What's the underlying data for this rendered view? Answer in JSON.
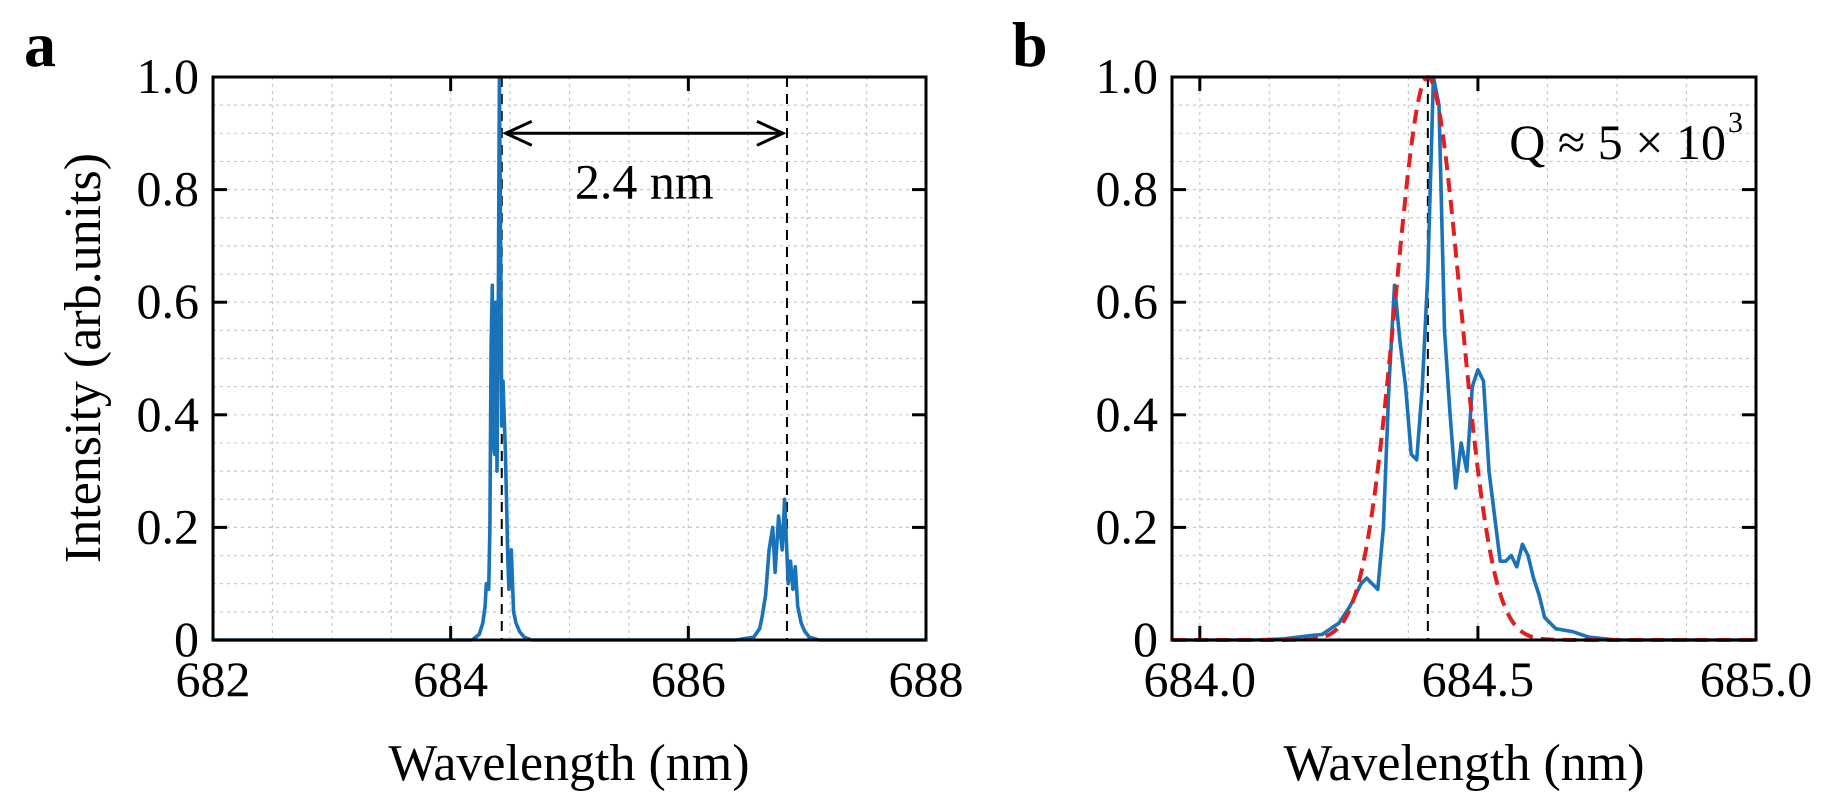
{
  "chart_data": [
    {
      "panel": "a",
      "type": "line",
      "title": "",
      "xlabel": "Wavelength (nm)",
      "ylabel": "Intensity (arb.units)",
      "xlim": [
        682,
        688
      ],
      "ylim": [
        0,
        1.0
      ],
      "xticks": [
        "682",
        "684",
        "686",
        "688"
      ],
      "yticks": [
        "0",
        "0.2",
        "0.4",
        "0.6",
        "0.8",
        "1.0"
      ],
      "grid": true,
      "series": [
        {
          "color": "#1a72b8",
          "x": [
            682.0,
            684.0,
            684.18,
            684.24,
            684.27,
            684.29,
            684.3,
            684.32,
            684.33,
            684.34,
            684.35,
            684.36,
            684.37,
            684.38,
            684.39,
            684.4,
            684.41,
            684.42,
            684.43,
            684.44,
            684.45,
            684.46,
            684.47,
            684.48,
            684.49,
            684.5,
            684.51,
            684.52,
            684.53,
            684.55,
            684.58,
            684.62,
            684.68,
            684.8,
            686.4,
            686.55,
            686.6,
            686.62,
            686.65,
            686.68,
            686.71,
            686.73,
            686.76,
            686.79,
            686.81,
            686.84,
            686.86,
            686.88,
            686.9,
            686.92,
            686.95,
            686.98,
            687.02,
            687.1,
            688.0
          ],
          "y": [
            0.0,
            0.0,
            0.0,
            0.01,
            0.03,
            0.06,
            0.1,
            0.09,
            0.2,
            0.52,
            0.63,
            0.35,
            0.33,
            0.6,
            0.3,
            0.55,
            1.0,
            0.7,
            0.38,
            0.46,
            0.4,
            0.34,
            0.25,
            0.15,
            0.09,
            0.13,
            0.16,
            0.1,
            0.05,
            0.03,
            0.015,
            0.005,
            0.0,
            0.0,
            0.0,
            0.005,
            0.02,
            0.04,
            0.08,
            0.16,
            0.2,
            0.12,
            0.22,
            0.16,
            0.25,
            0.1,
            0.14,
            0.09,
            0.13,
            0.06,
            0.03,
            0.015,
            0.005,
            0.0,
            0.0
          ]
        }
      ],
      "reference_lines_x": [
        684.43,
        686.83
      ],
      "annotation": {
        "text": "2.4 nm",
        "arrow_from_x": 684.43,
        "arrow_to_x": 686.83,
        "arrow_y": 0.9
      }
    },
    {
      "panel": "b",
      "type": "line",
      "title": "",
      "xlabel": "Wavelength (nm)",
      "ylabel": "",
      "xlim": [
        683.95,
        685.0
      ],
      "ylim": [
        0,
        1.0
      ],
      "xticks": [
        "684.0",
        "684.5",
        "685.0"
      ],
      "xtick_values": [
        684.0,
        684.5,
        685.0
      ],
      "yticks": [
        "0",
        "0.2",
        "0.4",
        "0.6",
        "0.8",
        "1.0"
      ],
      "grid": true,
      "series": [
        {
          "color": "#1a72b8",
          "x": [
            683.95,
            684.1,
            684.15,
            684.2,
            684.22,
            684.25,
            684.27,
            684.29,
            684.3,
            684.31,
            684.32,
            684.33,
            684.34,
            684.35,
            684.36,
            684.37,
            684.38,
            684.39,
            684.4,
            684.41,
            684.42,
            684.43,
            684.44,
            684.45,
            684.46,
            684.47,
            684.48,
            684.49,
            684.5,
            684.51,
            684.52,
            684.53,
            684.54,
            684.55,
            684.56,
            684.57,
            684.58,
            684.59,
            684.6,
            684.61,
            684.62,
            684.64,
            684.67,
            684.7,
            684.75,
            684.8,
            685.0
          ],
          "y": [
            0.0,
            0.0,
            0.002,
            0.008,
            0.01,
            0.03,
            0.06,
            0.1,
            0.11,
            0.1,
            0.09,
            0.2,
            0.45,
            0.63,
            0.53,
            0.45,
            0.33,
            0.32,
            0.45,
            0.65,
            1.0,
            0.95,
            0.55,
            0.4,
            0.27,
            0.35,
            0.3,
            0.45,
            0.48,
            0.46,
            0.3,
            0.22,
            0.14,
            0.14,
            0.15,
            0.13,
            0.17,
            0.15,
            0.11,
            0.08,
            0.04,
            0.02,
            0.015,
            0.005,
            0.0,
            0.0,
            0.0
          ]
        },
        {
          "color": "#e02020",
          "style": "dashed",
          "gaussian_fit": {
            "center": 684.41,
            "fwhm": 0.137,
            "amplitude": 1.0
          }
        }
      ],
      "reference_lines_x": [
        684.41
      ],
      "annotation": {
        "text": "Q ≈ 5 × 10",
        "superscript": "3",
        "position": "top-right"
      }
    }
  ],
  "panels": {
    "a": {
      "letter": "a"
    },
    "b": {
      "letter": "b"
    }
  }
}
